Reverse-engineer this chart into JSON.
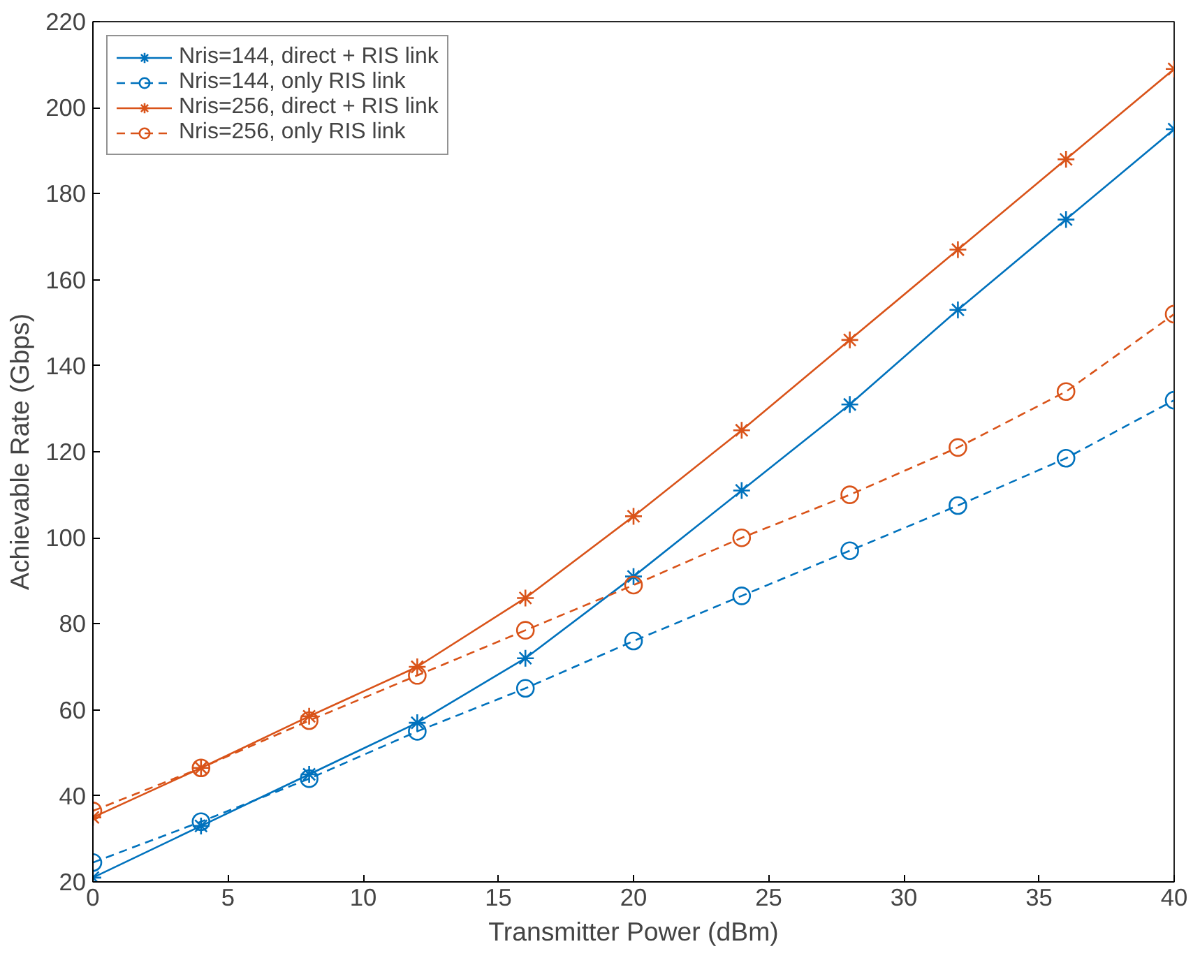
{
  "chart_data": {
    "type": "line",
    "xlabel": "Transmitter Power (dBm)",
    "ylabel": "Achievable Rate (Gbps)",
    "x": [
      0,
      4,
      8,
      12,
      16,
      20,
      24,
      28,
      32,
      36,
      40
    ],
    "xlim": [
      0,
      40
    ],
    "xticks": [
      0,
      5,
      10,
      15,
      20,
      25,
      30,
      35,
      40
    ],
    "ylim": [
      20,
      220
    ],
    "yticks": [
      20,
      40,
      60,
      80,
      100,
      120,
      140,
      160,
      180,
      200,
      220
    ],
    "grid": false,
    "legend": "top left",
    "series": [
      {
        "name": "Nris=144, direct + RIS link",
        "color": "#0072bd",
        "marker": "cross",
        "line_style": "solid",
        "values": [
          21,
          33,
          45,
          57,
          72,
          91,
          111,
          131,
          153,
          174,
          195
        ]
      },
      {
        "name": "Nris=144, only RIS link",
        "color": "#0072bd",
        "marker": "circle",
        "line_style": "dashed",
        "values": [
          24.5,
          34,
          44,
          55,
          65,
          76,
          86.5,
          97,
          107.5,
          118.5,
          132
        ]
      },
      {
        "name": "Nris=256, direct + RIS link",
        "color": "#d95319",
        "marker": "cross",
        "line_style": "solid",
        "values": [
          35,
          46.5,
          58.5,
          70,
          86,
          105,
          125,
          146,
          167,
          188,
          209
        ]
      },
      {
        "name": "Nris=256, only RIS link",
        "color": "#d95319",
        "marker": "circle",
        "line_style": "dashed",
        "values": [
          36.5,
          46.5,
          57.5,
          68,
          78.5,
          89,
          100,
          110,
          121,
          134,
          152
        ]
      }
    ]
  }
}
